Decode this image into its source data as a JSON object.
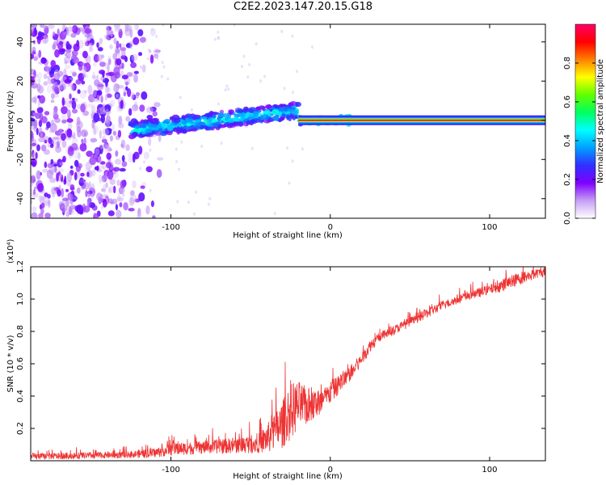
{
  "title": "C2E2.2023.147.20.15.G18",
  "chart_data": [
    {
      "type": "heatmap",
      "xlabel": "Height of straight line (km)",
      "ylabel": "Frequency (Hz)",
      "xlim": [
        -188,
        135
      ],
      "ylim": [
        -50,
        49
      ],
      "xticks": [
        -100,
        0,
        100
      ],
      "yticks": [
        -40,
        -20,
        0,
        20,
        40
      ],
      "colorbar": {
        "label": "Normalized spectral amplitude",
        "range": [
          0,
          1
        ],
        "ticks": [
          "0.0",
          "0.2",
          "0.4",
          "0.6",
          "0.8"
        ],
        "colors": [
          "#ffffff",
          "#c69ff4",
          "#7f00ff",
          "#3030ff",
          "#00a0ff",
          "#00ffff",
          "#00ff60",
          "#60ff00",
          "#ffff00",
          "#ff8000",
          "#ff0000",
          "#ff0066"
        ]
      },
      "features": [
        {
          "region": "noise",
          "x_range": [
            -188,
            -115
          ],
          "freq_range": [
            -50,
            49
          ],
          "amplitude": 0.15
        },
        {
          "region": "drifting-line",
          "x_range": [
            -125,
            -20
          ],
          "freq_start": -5,
          "freq_end": 5,
          "amplitude": 0.45
        },
        {
          "region": "transition",
          "x_range": [
            -20,
            12
          ],
          "freq": 0,
          "amplitude": 0.55
        },
        {
          "region": "stable-line",
          "x_range": [
            12,
            135
          ],
          "freq": 0,
          "amplitude": 0.95
        }
      ]
    },
    {
      "type": "line",
      "xlabel": "Height of straight line (km)",
      "ylabel": "SNR (10 * v/v)",
      "y_multiplier": "(x10⁴)",
      "xlim": [
        -188,
        135
      ],
      "ylim": [
        0,
        1.2
      ],
      "xticks": [
        -100,
        0,
        100
      ],
      "yticks": [
        "0.2",
        "0.4",
        "0.6",
        "0.8",
        "1.0",
        "1.2"
      ],
      "series": [
        {
          "color": "#ee3333",
          "x": [
            -188,
            -160,
            -130,
            -110,
            -100,
            -80,
            -60,
            -45,
            -38,
            -30,
            -25,
            -20,
            -15,
            -10,
            -5,
            0,
            5,
            10,
            15,
            20,
            25,
            30,
            40,
            50,
            60,
            70,
            80,
            90,
            100,
            110,
            120,
            130,
            135
          ],
          "y": [
            0.02,
            0.025,
            0.03,
            0.04,
            0.06,
            0.07,
            0.08,
            0.09,
            0.12,
            0.18,
            0.25,
            0.3,
            0.3,
            0.32,
            0.34,
            0.4,
            0.45,
            0.5,
            0.55,
            0.62,
            0.7,
            0.75,
            0.8,
            0.85,
            0.9,
            0.95,
            0.99,
            1.02,
            1.05,
            1.08,
            1.12,
            1.15,
            1.16
          ],
          "noise": [
            0.02,
            0.02,
            0.02,
            0.03,
            0.04,
            0.04,
            0.05,
            0.06,
            0.1,
            0.15,
            0.18,
            0.15,
            0.12,
            0.1,
            0.08,
            0.07,
            0.06,
            0.05,
            0.05,
            0.04,
            0.04,
            0.03,
            0.03,
            0.03,
            0.03,
            0.03,
            0.03,
            0.03,
            0.03,
            0.04,
            0.04,
            0.03,
            0.03
          ]
        }
      ]
    }
  ]
}
